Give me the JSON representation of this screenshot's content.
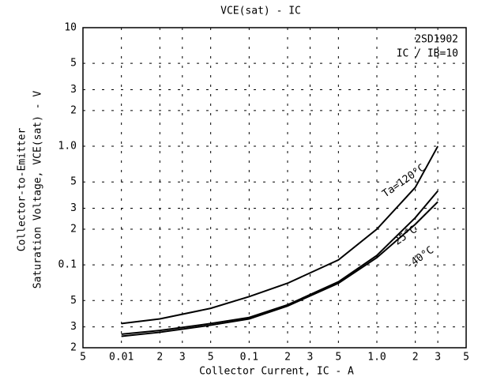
{
  "chart_data": {
    "type": "line",
    "log_x": true,
    "log_y": true,
    "grid": true,
    "title": "VCE(sat) - IC",
    "annotations": [
      "2SD1902",
      "IC / IB=10"
    ],
    "x_label": "Collector Current, IC - A",
    "y_label": [
      "Collector-to-Emitter",
      "Saturation Voltage, VCE(sat) - V"
    ],
    "x": [
      0.01,
      0.02,
      0.05,
      0.1,
      0.2,
      0.5,
      1,
      2,
      3
    ],
    "series": [
      {
        "name": "Ta=120°C",
        "color": "#000000",
        "values": [
          0.032,
          0.035,
          0.043,
          0.054,
          0.07,
          0.11,
          0.2,
          0.45,
          1.0
        ]
      },
      {
        "name": "25°C",
        "color": "#000000",
        "values": [
          0.026,
          0.028,
          0.032,
          0.036,
          0.046,
          0.072,
          0.12,
          0.25,
          0.42
        ]
      },
      {
        "name": "-40°C",
        "color": "#000000",
        "values": [
          0.025,
          0.027,
          0.031,
          0.035,
          0.045,
          0.07,
          0.115,
          0.22,
          0.34
        ]
      }
    ],
    "xlim": [
      0.005,
      5
    ],
    "xticks": [
      {
        "value": 0.005,
        "label": "5"
      },
      0.01,
      {
        "value": 0.02,
        "label": "2"
      },
      {
        "value": 0.03,
        "label": "3"
      },
      {
        "value": 0.05,
        "label": "5"
      },
      0.1,
      {
        "value": 0.2,
        "label": "2"
      },
      {
        "value": 0.3,
        "label": "3"
      },
      {
        "value": 0.5,
        "label": "5"
      },
      {
        "value": 1,
        "label": "1.0"
      },
      2,
      3,
      5
    ],
    "ylim": [
      0.02,
      10
    ],
    "yticks": [
      10,
      {
        "value": 5,
        "label": "5"
      },
      {
        "value": 3,
        "label": "3"
      },
      {
        "value": 2,
        "label": "2"
      },
      {
        "value": 1,
        "label": "1.0"
      },
      {
        "value": 0.5,
        "label": "5"
      },
      {
        "value": 0.3,
        "label": "3"
      },
      {
        "value": 0.2,
        "label": "2"
      },
      0.1,
      {
        "value": 0.05,
        "label": "5"
      },
      {
        "value": 0.03,
        "label": "3"
      },
      {
        "value": 0.02,
        "label": "2"
      }
    ]
  }
}
